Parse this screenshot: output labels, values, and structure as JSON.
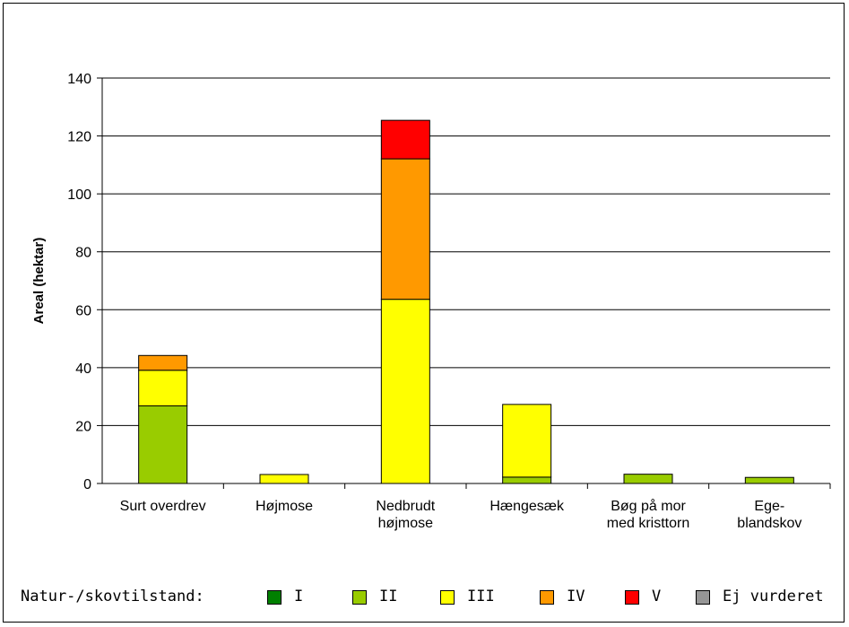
{
  "chart_data": {
    "type": "bar",
    "stacked": true,
    "title": "",
    "xlabel": "",
    "ylabel": "Areal (hektar)",
    "ylim": [
      0,
      140
    ],
    "yticks": [
      0,
      20,
      40,
      60,
      80,
      100,
      120,
      140
    ],
    "grid": true,
    "categories": [
      [
        "Surt overdrev"
      ],
      [
        "Højmose"
      ],
      [
        "Nedbrudt",
        "højmose"
      ],
      [
        "Hængesæk"
      ],
      [
        "Bøg på mor",
        "med kristtorn"
      ],
      [
        "Ege-",
        "blandskov"
      ]
    ],
    "series": [
      {
        "name": "I",
        "color": "#008000",
        "values": [
          0,
          0,
          0,
          0,
          0,
          0
        ]
      },
      {
        "name": "II",
        "color": "#99CC00",
        "values": [
          26.8,
          0,
          0,
          2.2,
          3.2,
          2.1
        ]
      },
      {
        "name": "III",
        "color": "#FFFF00",
        "values": [
          12.3,
          3.1,
          63.6,
          25.1,
          0,
          0
        ]
      },
      {
        "name": "IV",
        "color": "#FF9900",
        "values": [
          5.1,
          0,
          48.5,
          0,
          0,
          0
        ]
      },
      {
        "name": "V",
        "color": "#FF0000",
        "values": [
          0,
          0,
          13.3,
          0,
          0,
          0
        ]
      },
      {
        "name": "Ej vurderet",
        "color": "#969696",
        "values": [
          0,
          0,
          0,
          0,
          0,
          0
        ]
      }
    ],
    "legend_position": "bottom"
  },
  "legend": {
    "title": "Natur-/skovtilstand:"
  }
}
